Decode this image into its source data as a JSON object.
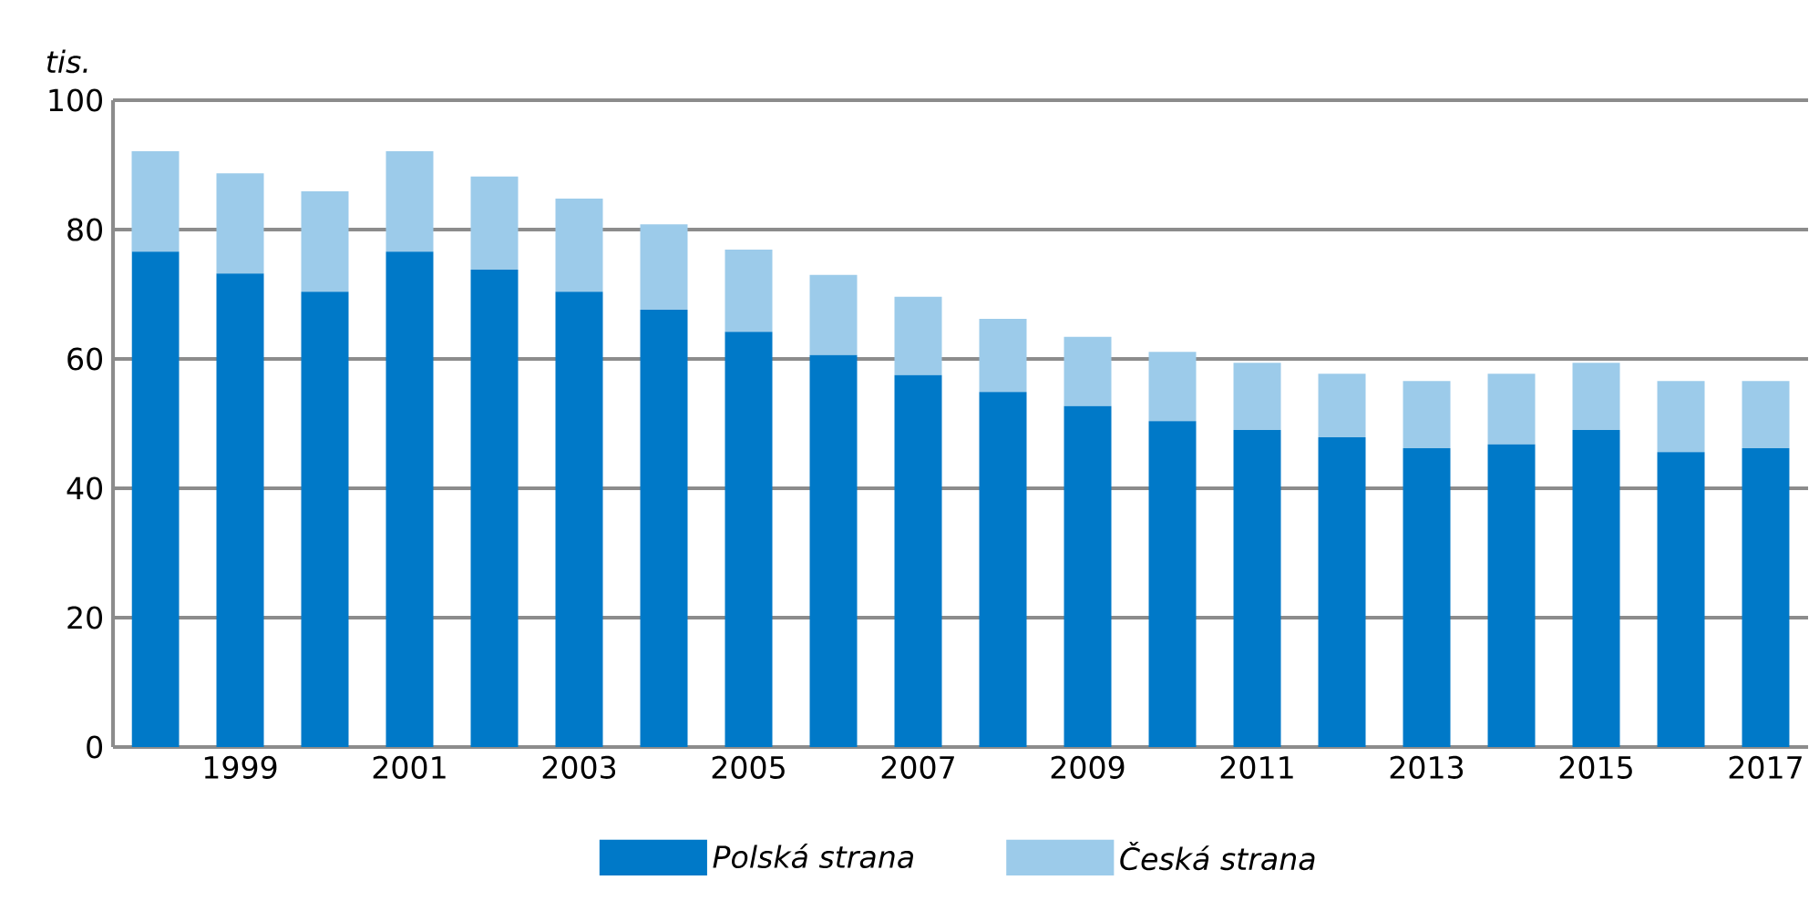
{
  "chart_data": {
    "type": "bar",
    "stacked": true,
    "ylabel": "tis.",
    "categories": [
      null,
      "1999",
      null,
      "2001",
      null,
      "2003",
      null,
      "2005",
      null,
      "2007",
      null,
      "2009",
      null,
      "2011",
      null,
      "2013",
      null,
      "2015",
      null,
      "2017"
    ],
    "series": [
      {
        "name": "Polská strana",
        "color": "#0079c8",
        "values": [
          76.6,
          73.2,
          70.4,
          76.6,
          73.8,
          70.4,
          67.6,
          64.2,
          60.6,
          57.5,
          54.9,
          52.7,
          50.4,
          49.0,
          47.9,
          46.2,
          46.8,
          49.0,
          45.6,
          46.2
        ]
      },
      {
        "name": "Česká strana",
        "color": "#9ccbea",
        "values": [
          15.5,
          15.5,
          15.5,
          15.5,
          14.4,
          14.4,
          13.2,
          12.7,
          12.4,
          12.1,
          11.3,
          10.7,
          10.7,
          10.4,
          9.8,
          10.4,
          10.9,
          10.4,
          11.0,
          10.4
        ]
      }
    ],
    "ylim": [
      0,
      100
    ],
    "yticks": [
      0,
      20,
      40,
      60,
      80,
      100
    ],
    "grid": "y",
    "legend": "bottom"
  }
}
